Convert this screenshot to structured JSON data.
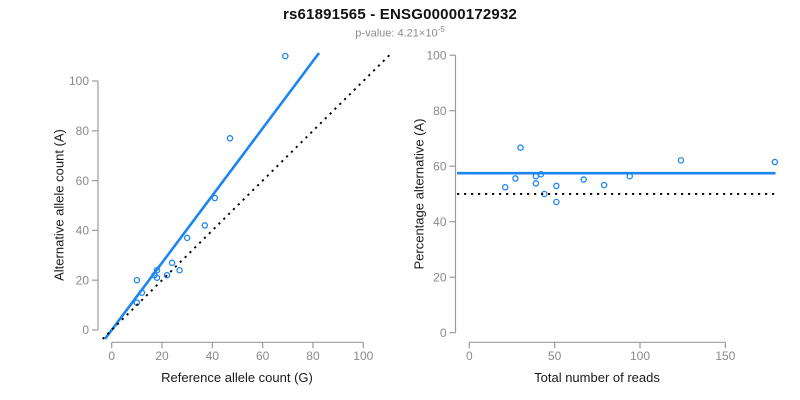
{
  "header": {
    "title": "rs61891565 - ENSG00000172932",
    "subtitle_base": "p-value: 4.21×10",
    "subtitle_exponent": "-5"
  },
  "colors": {
    "accent_blue": "#1C86EE",
    "axis_gray": "#9b9b9b",
    "tick_label_gray": "#8a8a8a",
    "line_black": "#000000"
  },
  "chart_data": [
    {
      "type": "scatter",
      "xlabel": "Reference allele count (G)",
      "ylabel": "Alternative allele count (A)",
      "xlim": [
        0,
        100
      ],
      "ylim": [
        0,
        112
      ],
      "grid": false,
      "xticks": [
        0,
        20,
        40,
        60,
        80,
        100
      ],
      "yticks": [
        0,
        20,
        40,
        60,
        80,
        100
      ],
      "points": [
        [
          10,
          20
        ],
        [
          10,
          11
        ],
        [
          12,
          15
        ],
        [
          17,
          22
        ],
        [
          18,
          21
        ],
        [
          18,
          24
        ],
        [
          22,
          22
        ],
        [
          24,
          27
        ],
        [
          27,
          24
        ],
        [
          30,
          37
        ],
        [
          37,
          42
        ],
        [
          41,
          53
        ],
        [
          47,
          77
        ],
        [
          69,
          110
        ]
      ],
      "lines": [
        {
          "name": "fit-line",
          "slope": 1.35,
          "intercept": 0,
          "style": "solid",
          "color": "#1C86EE"
        },
        {
          "name": "identity-line",
          "slope": 1,
          "intercept": 0,
          "style": "dotted",
          "color": "#000000"
        }
      ]
    },
    {
      "type": "scatter",
      "xlabel": "Total number of reads",
      "ylabel": "Percentage alternative (A)",
      "xlim": [
        0,
        180
      ],
      "ylim": [
        0,
        100
      ],
      "grid": false,
      "xticks": [
        0,
        50,
        100,
        150
      ],
      "yticks": [
        0,
        20,
        40,
        60,
        80,
        100
      ],
      "points": [
        [
          30,
          66.7
        ],
        [
          21,
          52.4
        ],
        [
          27,
          55.6
        ],
        [
          39,
          56.4
        ],
        [
          39,
          53.8
        ],
        [
          42,
          57.1
        ],
        [
          44,
          50.0
        ],
        [
          51,
          52.9
        ],
        [
          51,
          47.1
        ],
        [
          67,
          55.2
        ],
        [
          79,
          53.2
        ],
        [
          94,
          56.4
        ],
        [
          124,
          62.1
        ],
        [
          179,
          61.5
        ]
      ],
      "hlines": [
        {
          "name": "fit-line",
          "y": 57.5,
          "style": "solid",
          "color": "#1C86EE"
        },
        {
          "name": "null-line",
          "y": 50,
          "style": "dotted",
          "color": "#000000"
        }
      ]
    }
  ]
}
